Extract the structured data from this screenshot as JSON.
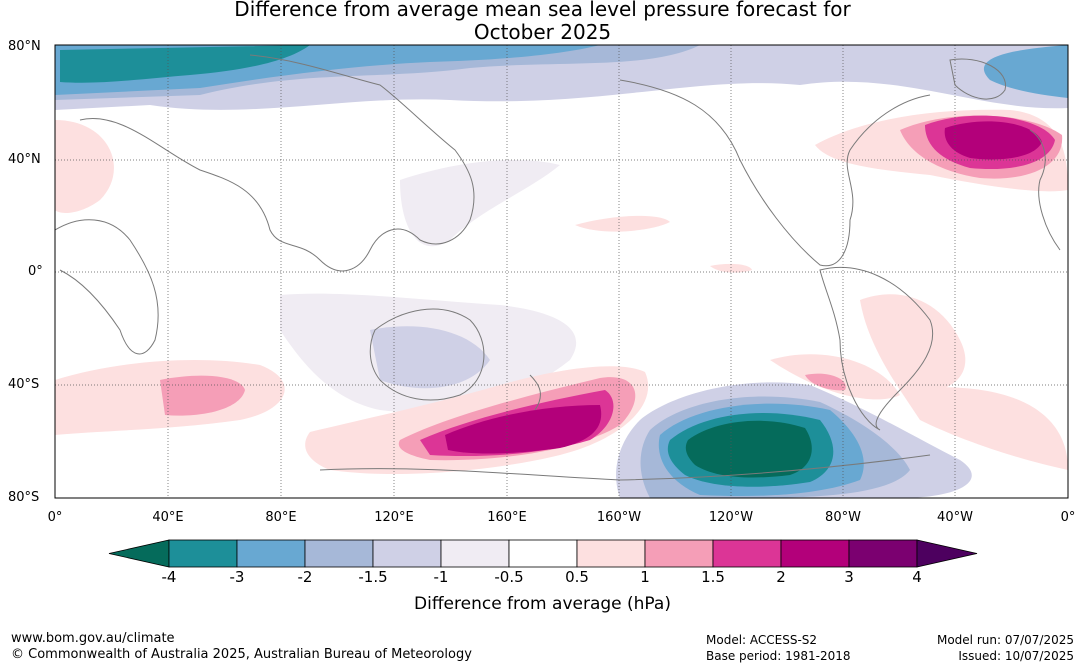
{
  "title_line1": "Difference from average mean sea level pressure forecast for",
  "title_line2": "October 2025",
  "lat_labels": [
    "80°N",
    "40°N",
    "0°",
    "40°S",
    "80°S"
  ],
  "lon_labels": [
    "0°",
    "40°E",
    "80°E",
    "120°E",
    "160°E",
    "160°W",
    "120°W",
    "80°W",
    "40°W",
    "0°"
  ],
  "colorbar": {
    "label": "Difference from average (hPa)",
    "ticks": [
      "-4",
      "-3",
      "-2",
      "-1.5",
      "-1",
      "-0.5",
      "0.5",
      "1",
      "1.5",
      "2",
      "3",
      "4"
    ],
    "colors": [
      "#056b5b",
      "#1d8f99",
      "#68a8d2",
      "#a6b8d8",
      "#cfd0e6",
      "#f0ecf3",
      "#ffffff",
      "#fde0e0",
      "#f59eb7",
      "#dc3596",
      "#b3007a",
      "#7b0070",
      "#4d005f"
    ]
  },
  "footer": {
    "site": "www.bom.gov.au/climate",
    "copyright": "© Commonwealth of Australia 2025, Australian Bureau of Meteorology",
    "model": "Model: ACCESS-S2",
    "base_period": "Base period: 1981-2018",
    "model_run": "Model run: 07/07/2025",
    "issued": "Issued: 10/07/2025"
  }
}
